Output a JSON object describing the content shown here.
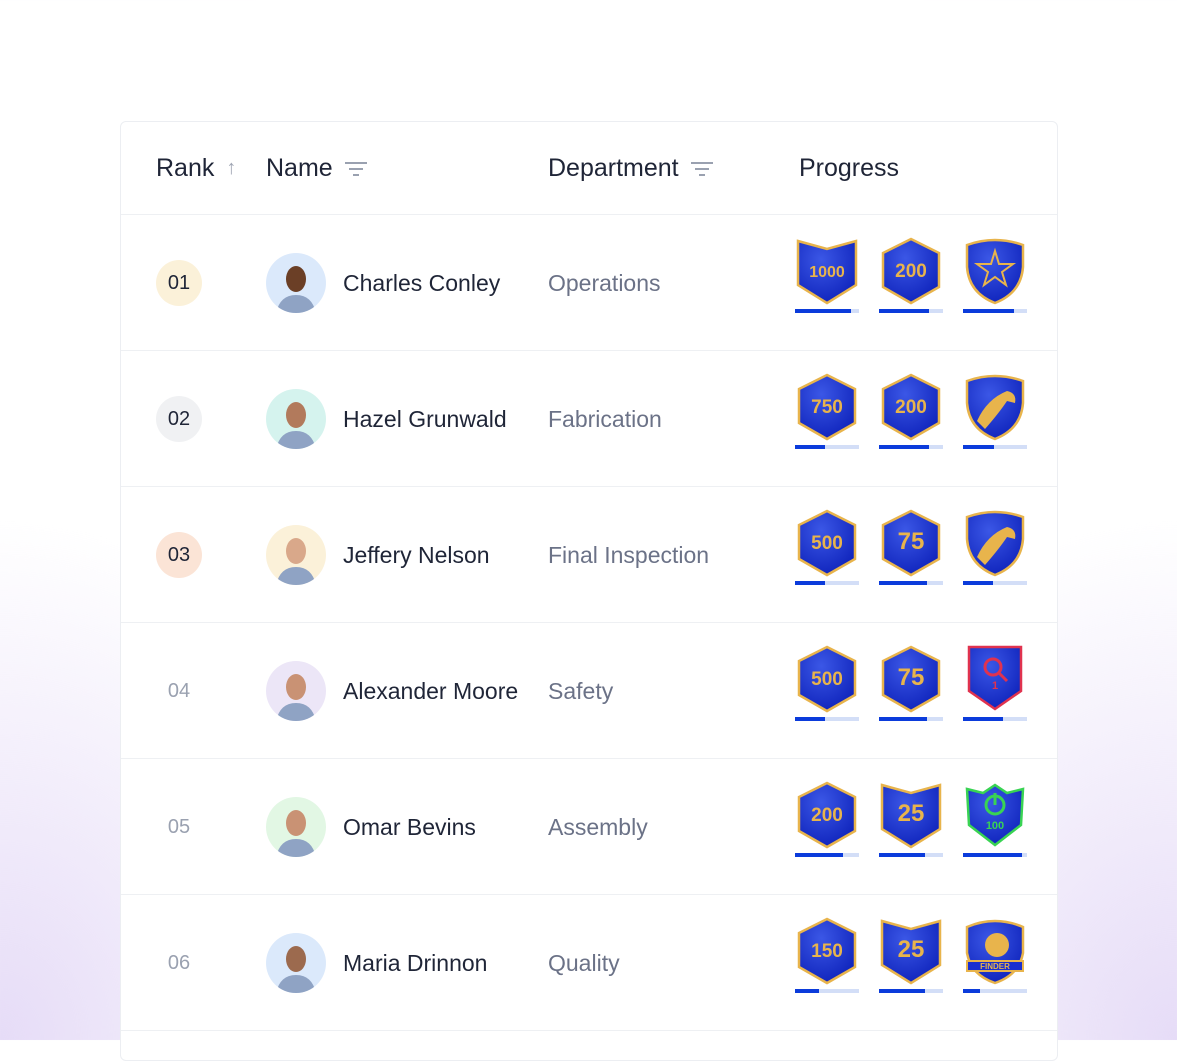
{
  "header": {
    "rank": "Rank",
    "name": "Name",
    "department": "Department",
    "progress": "Progress"
  },
  "colors": {
    "accent": "#0b3bdb",
    "badge_blue": "#1a2fd0",
    "gold": "#e8b44c"
  },
  "rows": [
    {
      "rank": "01",
      "rank_bg": "#fbf1d9",
      "name": "Charles Conley",
      "department": "Operations",
      "avatar_bg": "#dbe9fb",
      "skin": "#6b3f26",
      "badges": [
        {
          "shape": "chevron",
          "label": "1000",
          "progress": 0.87
        },
        {
          "shape": "hexagon",
          "label": "200",
          "progress": 0.78
        },
        {
          "shape": "star-shield",
          "label": "",
          "progress": 0.79
        }
      ]
    },
    {
      "rank": "02",
      "rank_bg": "#f0f1f3",
      "name": "Hazel Grunwald",
      "department": "Fabrication",
      "avatar_bg": "#d5f3ee",
      "skin": "#b27a5c",
      "badges": [
        {
          "shape": "hexagon",
          "label": "750",
          "progress": 0.47
        },
        {
          "shape": "hexagon",
          "label": "200",
          "progress": 0.78
        },
        {
          "shape": "eagle-shield",
          "label": "",
          "progress": 0.48
        }
      ]
    },
    {
      "rank": "03",
      "rank_bg": "#fbe4d6",
      "name": "Jeffery Nelson",
      "department": "Final Inspection",
      "avatar_bg": "#fbf1d9",
      "skin": "#d9a88a",
      "badges": [
        {
          "shape": "hexagon",
          "label": "500",
          "progress": 0.47
        },
        {
          "shape": "hexagon",
          "label": "75",
          "progress": 0.75
        },
        {
          "shape": "eagle-shield",
          "label": "",
          "progress": 0.47
        }
      ]
    },
    {
      "rank": "04",
      "rank_bg": "",
      "name": "Alexander Moore",
      "department": "Safety",
      "avatar_bg": "#ece6f7",
      "skin": "#c99274",
      "badges": [
        {
          "shape": "hexagon",
          "label": "500",
          "progress": 0.47
        },
        {
          "shape": "hexagon",
          "label": "75",
          "progress": 0.75
        },
        {
          "shape": "search-shield",
          "label": "1",
          "progress": 0.62
        }
      ]
    },
    {
      "rank": "05",
      "rank_bg": "",
      "name": "Omar Bevins",
      "department": "Assembly",
      "avatar_bg": "#e2f7e4",
      "skin": "#c99274",
      "badges": [
        {
          "shape": "hexagon",
          "label": "200",
          "progress": 0.75
        },
        {
          "shape": "chevron",
          "label": "25",
          "progress": 0.72
        },
        {
          "shape": "power-shield",
          "label": "100",
          "progress": 0.92
        }
      ]
    },
    {
      "rank": "06",
      "rank_bg": "",
      "name": "Maria Drinnon",
      "department": "Quality",
      "avatar_bg": "#dbe9fb",
      "skin": "#9c6a4e",
      "badges": [
        {
          "shape": "hexagon",
          "label": "150",
          "progress": 0.375
        },
        {
          "shape": "chevron",
          "label": "25",
          "progress": 0.72
        },
        {
          "shape": "finder-crest",
          "label": "FINDER",
          "progress": 0.26
        }
      ]
    }
  ]
}
